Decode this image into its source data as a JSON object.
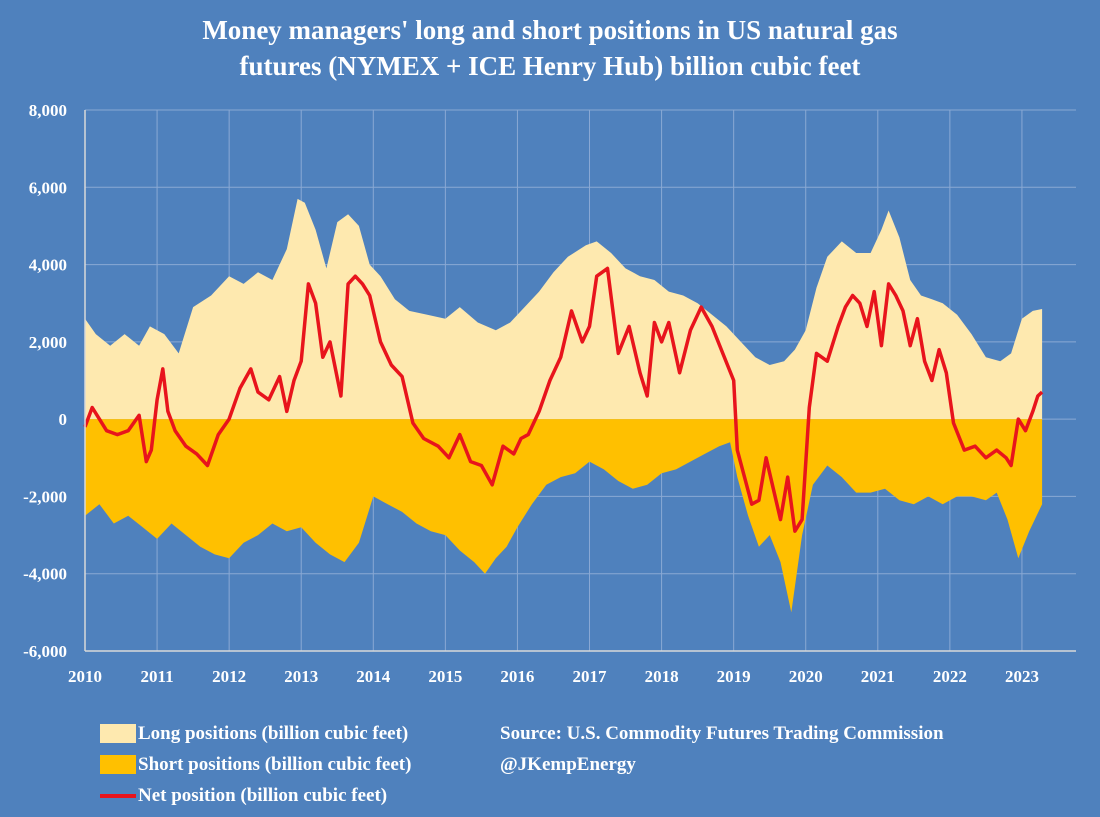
{
  "title_line1": "Money managers' long and short positions in US natural gas",
  "title_line2": "futures (NYMEX + ICE Henry Hub) billion cubic feet",
  "source_line1": "Source: U.S. Commodity Futures Trading Commission",
  "source_line2": "@JKempEnergy",
  "colors": {
    "background": "#4f81bd",
    "long": "#fee9af",
    "short": "#ffc000",
    "net": "#e8141c",
    "grid": "#8aa9d4"
  },
  "chart_data": {
    "type": "area",
    "title": "Money managers' long and short positions in US natural gas futures (NYMEX + ICE Henry Hub) billion cubic feet",
    "xlabel": "",
    "ylabel": "",
    "xlim": [
      2010,
      2023.75
    ],
    "ylim": [
      -6000,
      8000
    ],
    "y_ticks": [
      "8,000",
      "6,000",
      "4,000",
      "2,000",
      "0",
      "-2,000",
      "-4,000",
      "-6,000"
    ],
    "y_tick_values": [
      8000,
      6000,
      4000,
      2000,
      0,
      -2000,
      -4000,
      -6000
    ],
    "x_ticks": [
      "2010",
      "2011",
      "2012",
      "2013",
      "2014",
      "2015",
      "2016",
      "2017",
      "2018",
      "2019",
      "2020",
      "2021",
      "2022",
      "2023"
    ],
    "x_tick_values": [
      2010,
      2011,
      2012,
      2013,
      2014,
      2015,
      2016,
      2017,
      2018,
      2019,
      2020,
      2021,
      2022,
      2023
    ],
    "grid": "both",
    "legend_position": "bottom-left",
    "series": [
      {
        "name": "Long positions (billion cubic feet)",
        "kind": "area",
        "x": [
          2010.0,
          2010.15,
          2010.35,
          2010.55,
          2010.75,
          2010.9,
          2011.1,
          2011.3,
          2011.5,
          2011.75,
          2012.0,
          2012.2,
          2012.4,
          2012.6,
          2012.8,
          2012.95,
          2013.05,
          2013.2,
          2013.35,
          2013.5,
          2013.65,
          2013.8,
          2013.95,
          2014.1,
          2014.3,
          2014.5,
          2014.75,
          2015.0,
          2015.2,
          2015.45,
          2015.7,
          2015.9,
          2016.1,
          2016.3,
          2016.5,
          2016.7,
          2016.95,
          2017.1,
          2017.3,
          2017.5,
          2017.7,
          2017.9,
          2018.1,
          2018.3,
          2018.5,
          2018.7,
          2018.9,
          2019.1,
          2019.3,
          2019.5,
          2019.7,
          2019.85,
          2020.0,
          2020.15,
          2020.3,
          2020.5,
          2020.7,
          2020.9,
          2021.05,
          2021.15,
          2021.3,
          2021.45,
          2021.6,
          2021.75,
          2021.9,
          2022.1,
          2022.3,
          2022.5,
          2022.7,
          2022.85,
          2023.0,
          2023.15,
          2023.28
        ],
        "values": [
          2600,
          2200,
          1900,
          2200,
          1900,
          2400,
          2200,
          1700,
          2900,
          3200,
          3700,
          3500,
          3800,
          3600,
          4400,
          5700,
          5600,
          4900,
          3900,
          5100,
          5300,
          5000,
          4000,
          3700,
          3100,
          2800,
          2700,
          2600,
          2900,
          2500,
          2300,
          2500,
          2900,
          3300,
          3800,
          4200,
          4500,
          4600,
          4300,
          3900,
          3700,
          3600,
          3300,
          3200,
          3000,
          2700,
          2400,
          2000,
          1600,
          1400,
          1500,
          1800,
          2300,
          3400,
          4200,
          4600,
          4300,
          4300,
          4900,
          5400,
          4700,
          3600,
          3200,
          3100,
          3000,
          2700,
          2200,
          1600,
          1500,
          1700,
          2600,
          2800,
          2850
        ]
      },
      {
        "name": "Short positions (billion cubic feet)",
        "kind": "area",
        "x": [
          2010.0,
          2010.2,
          2010.4,
          2010.6,
          2010.8,
          2011.0,
          2011.2,
          2011.4,
          2011.6,
          2011.8,
          2012.0,
          2012.2,
          2012.4,
          2012.6,
          2012.8,
          2013.0,
          2013.2,
          2013.4,
          2013.6,
          2013.8,
          2014.0,
          2014.2,
          2014.4,
          2014.6,
          2014.8,
          2015.0,
          2015.2,
          2015.4,
          2015.55,
          2015.7,
          2015.85,
          2016.0,
          2016.2,
          2016.4,
          2016.6,
          2016.8,
          2017.0,
          2017.2,
          2017.4,
          2017.6,
          2017.8,
          2018.0,
          2018.2,
          2018.4,
          2018.6,
          2018.8,
          2018.95,
          2019.05,
          2019.2,
          2019.35,
          2019.5,
          2019.65,
          2019.8,
          2019.95,
          2020.1,
          2020.3,
          2020.5,
          2020.7,
          2020.9,
          2021.1,
          2021.3,
          2021.5,
          2021.7,
          2021.9,
          2022.1,
          2022.3,
          2022.5,
          2022.65,
          2022.8,
          2022.95,
          2023.1,
          2023.28
        ],
        "values": [
          -2500,
          -2200,
          -2700,
          -2500,
          -2800,
          -3100,
          -2700,
          -3000,
          -3300,
          -3500,
          -3600,
          -3200,
          -3000,
          -2700,
          -2900,
          -2800,
          -3200,
          -3500,
          -3700,
          -3200,
          -2000,
          -2200,
          -2400,
          -2700,
          -2900,
          -3000,
          -3400,
          -3700,
          -4000,
          -3600,
          -3300,
          -2800,
          -2200,
          -1700,
          -1500,
          -1400,
          -1100,
          -1300,
          -1600,
          -1800,
          -1700,
          -1400,
          -1300,
          -1100,
          -900,
          -700,
          -600,
          -1500,
          -2500,
          -3300,
          -3000,
          -3700,
          -5000,
          -3000,
          -1700,
          -1200,
          -1500,
          -1900,
          -1900,
          -1800,
          -2100,
          -2200,
          -2000,
          -2200,
          -2000,
          -2000,
          -2100,
          -1900,
          -2600,
          -3600,
          -2900,
          -2200
        ]
      },
      {
        "name": "Net position (billion cubic feet)",
        "kind": "line",
        "x": [
          2010.0,
          2010.1,
          2010.2,
          2010.3,
          2010.45,
          2010.6,
          2010.75,
          2010.85,
          2010.92,
          2011.0,
          2011.08,
          2011.15,
          2011.25,
          2011.4,
          2011.55,
          2011.7,
          2011.85,
          2012.0,
          2012.15,
          2012.3,
          2012.4,
          2012.55,
          2012.7,
          2012.8,
          2012.9,
          2013.0,
          2013.1,
          2013.2,
          2013.3,
          2013.4,
          2013.55,
          2013.65,
          2013.75,
          2013.85,
          2013.95,
          2014.1,
          2014.25,
          2014.4,
          2014.55,
          2014.7,
          2014.9,
          2015.05,
          2015.2,
          2015.35,
          2015.5,
          2015.65,
          2015.8,
          2015.95,
          2016.05,
          2016.15,
          2016.3,
          2016.45,
          2016.6,
          2016.75,
          2016.9,
          2017.0,
          2017.1,
          2017.25,
          2017.4,
          2017.55,
          2017.7,
          2017.8,
          2017.9,
          2018.0,
          2018.1,
          2018.25,
          2018.4,
          2018.55,
          2018.7,
          2018.85,
          2019.0,
          2019.05,
          2019.15,
          2019.25,
          2019.35,
          2019.45,
          2019.55,
          2019.65,
          2019.75,
          2019.85,
          2019.95,
          2020.05,
          2020.15,
          2020.3,
          2020.45,
          2020.55,
          2020.65,
          2020.75,
          2020.85,
          2020.95,
          2021.05,
          2021.15,
          2021.25,
          2021.35,
          2021.45,
          2021.55,
          2021.65,
          2021.75,
          2021.85,
          2021.95,
          2022.05,
          2022.2,
          2022.35,
          2022.5,
          2022.65,
          2022.78,
          2022.85,
          2022.95,
          2023.05,
          2023.15,
          2023.22,
          2023.28
        ],
        "values": [
          -200,
          300,
          0,
          -300,
          -400,
          -300,
          100,
          -1100,
          -800,
          500,
          1300,
          200,
          -300,
          -700,
          -900,
          -1200,
          -400,
          0,
          800,
          1300,
          700,
          500,
          1100,
          200,
          1000,
          1500,
          3500,
          3000,
          1600,
          2000,
          600,
          3500,
          3700,
          3500,
          3200,
          2000,
          1400,
          1100,
          -100,
          -500,
          -700,
          -1000,
          -400,
          -1100,
          -1200,
          -1700,
          -700,
          -900,
          -500,
          -400,
          200,
          1000,
          1600,
          2800,
          2000,
          2400,
          3700,
          3900,
          1700,
          2400,
          1200,
          600,
          2500,
          2000,
          2500,
          1200,
          2300,
          2900,
          2400,
          1700,
          1000,
          -800,
          -1500,
          -2200,
          -2100,
          -1000,
          -1800,
          -2600,
          -1500,
          -2900,
          -2600,
          300,
          1700,
          1500,
          2400,
          2900,
          3200,
          3000,
          2400,
          3300,
          1900,
          3500,
          3200,
          2800,
          1900,
          2600,
          1500,
          1000,
          1800,
          1200,
          -100,
          -800,
          -700,
          -1000,
          -800,
          -1000,
          -1200,
          0,
          -300,
          200,
          600,
          700
        ]
      }
    ]
  }
}
